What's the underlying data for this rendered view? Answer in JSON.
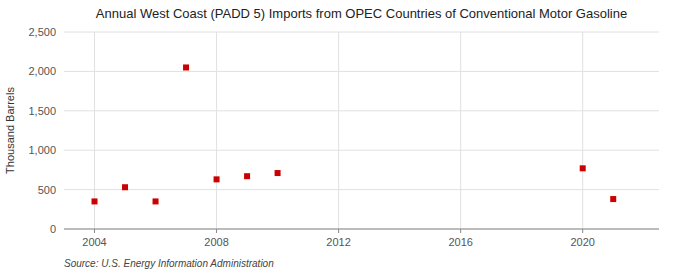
{
  "chart_data": {
    "type": "scatter",
    "title": "Annual West Coast (PADD 5) Imports from OPEC Countries of Conventional Motor Gasoline",
    "ylabel": "Thousand Barrels",
    "source": "Source: U.S. Energy Information Administration",
    "x": [
      2004,
      2005,
      2006,
      2007,
      2008,
      2009,
      2010,
      2020,
      2021
    ],
    "values": [
      350,
      530,
      350,
      2050,
      630,
      670,
      710,
      770,
      380
    ],
    "color": "#cc0000",
    "marker": "square",
    "xlim": [
      2003.0,
      2022.5
    ],
    "ylim": [
      0,
      2500
    ],
    "xticks": [
      2004,
      2008,
      2012,
      2016,
      2020
    ],
    "yticks": [
      0,
      500,
      {
        "value": 1000,
        "label": "1,000"
      },
      {
        "value": 1500,
        "label": "1,500"
      },
      {
        "value": 2000,
        "label": "2,000"
      },
      {
        "value": 2500,
        "label": "2,500"
      }
    ],
    "grid": true
  }
}
